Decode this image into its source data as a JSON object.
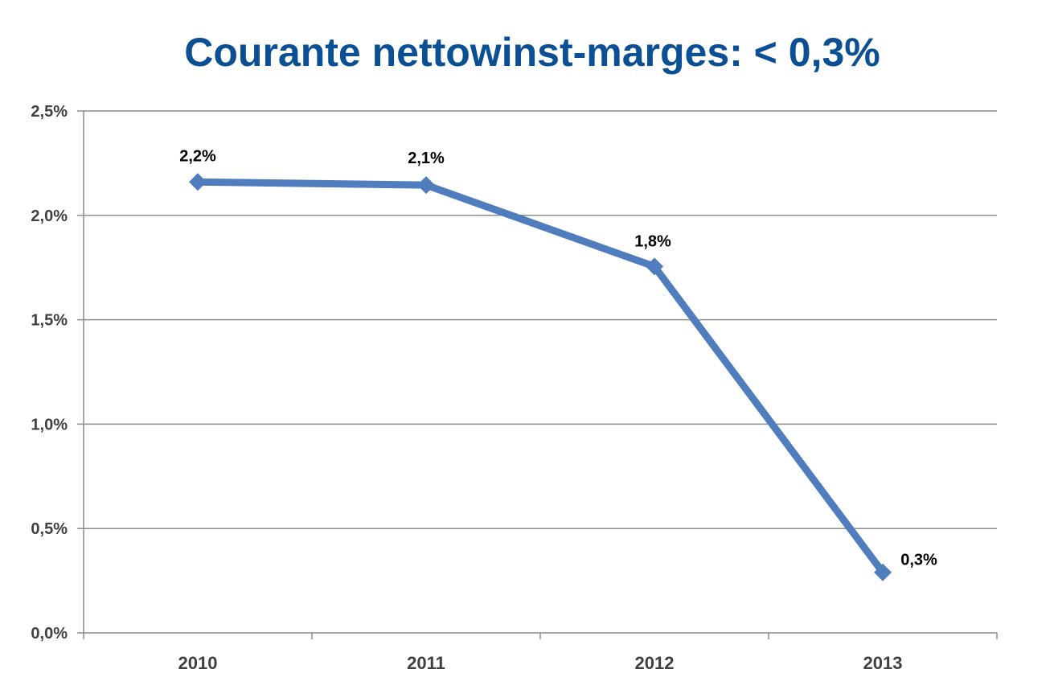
{
  "chart_data": {
    "type": "line",
    "title": "Courante nettowinst-marges: < 0,3%",
    "categories": [
      "2010",
      "2011",
      "2012",
      "2013"
    ],
    "series": [
      {
        "values": [
          2.16,
          2.145,
          1.755,
          0.29
        ],
        "data_labels": [
          "2,2%",
          "2,1%",
          "1,8%",
          "0,3%"
        ],
        "marker": "diamond"
      }
    ],
    "y_ticks": [
      0,
      0.5,
      1.0,
      1.5,
      2.0,
      2.5
    ],
    "y_tick_labels": [
      "0,0%",
      "0,5%",
      "1,0%",
      "1,5%",
      "2,0%",
      "2,5%"
    ],
    "ylim": [
      0,
      2.5
    ],
    "grid": true,
    "legend": "none",
    "colors": {
      "title": "#0b4f94",
      "series": "#4f7dbd",
      "grid": "#8c8c8c",
      "axis": "#8c8c8c"
    }
  }
}
